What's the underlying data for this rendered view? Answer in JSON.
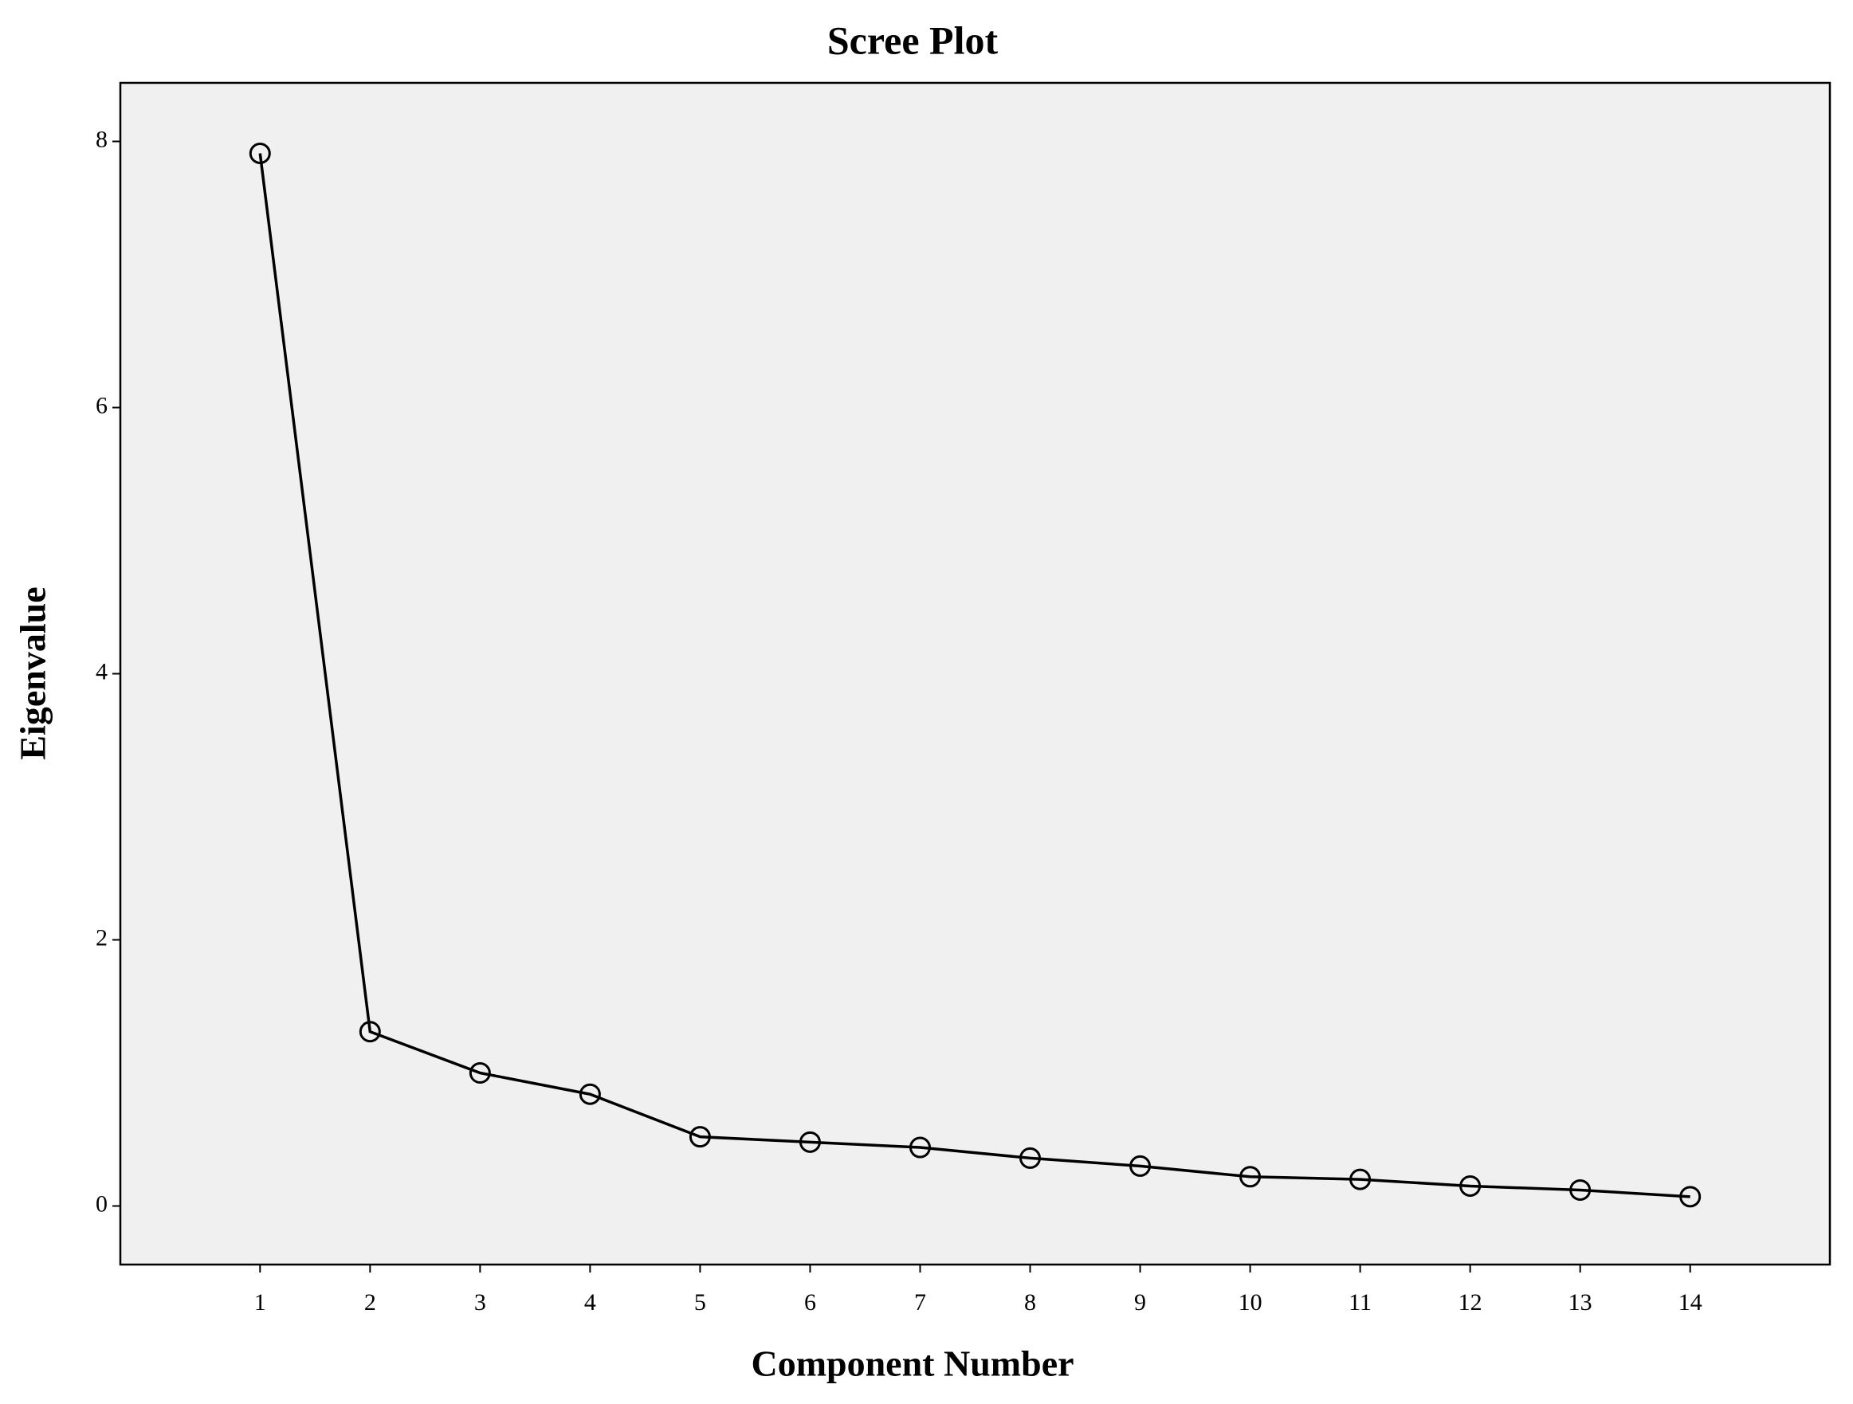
{
  "chart_data": {
    "type": "line",
    "title": "Scree Plot",
    "x_label": "Component Number",
    "y_label": "Eigenvalue",
    "x": [
      1,
      2,
      3,
      4,
      5,
      6,
      7,
      8,
      9,
      10,
      11,
      12,
      13,
      14
    ],
    "series": [
      {
        "name": "Eigenvalue",
        "color": "#000000",
        "values": [
          7.91,
          1.31,
          1.0,
          0.84,
          0.52,
          0.48,
          0.44,
          0.36,
          0.3,
          0.22,
          0.2,
          0.15,
          0.12,
          0.07
        ]
      }
    ],
    "xlim": [
      -0.27,
      15.27
    ],
    "xticks": [
      1,
      2,
      3,
      4,
      5,
      6,
      7,
      8,
      9,
      10,
      11,
      12,
      13,
      14
    ],
    "ylim": [
      -0.44,
      8.44
    ],
    "yticks": [
      0,
      2,
      4,
      6,
      8
    ],
    "grid": false,
    "marker": "circle"
  }
}
